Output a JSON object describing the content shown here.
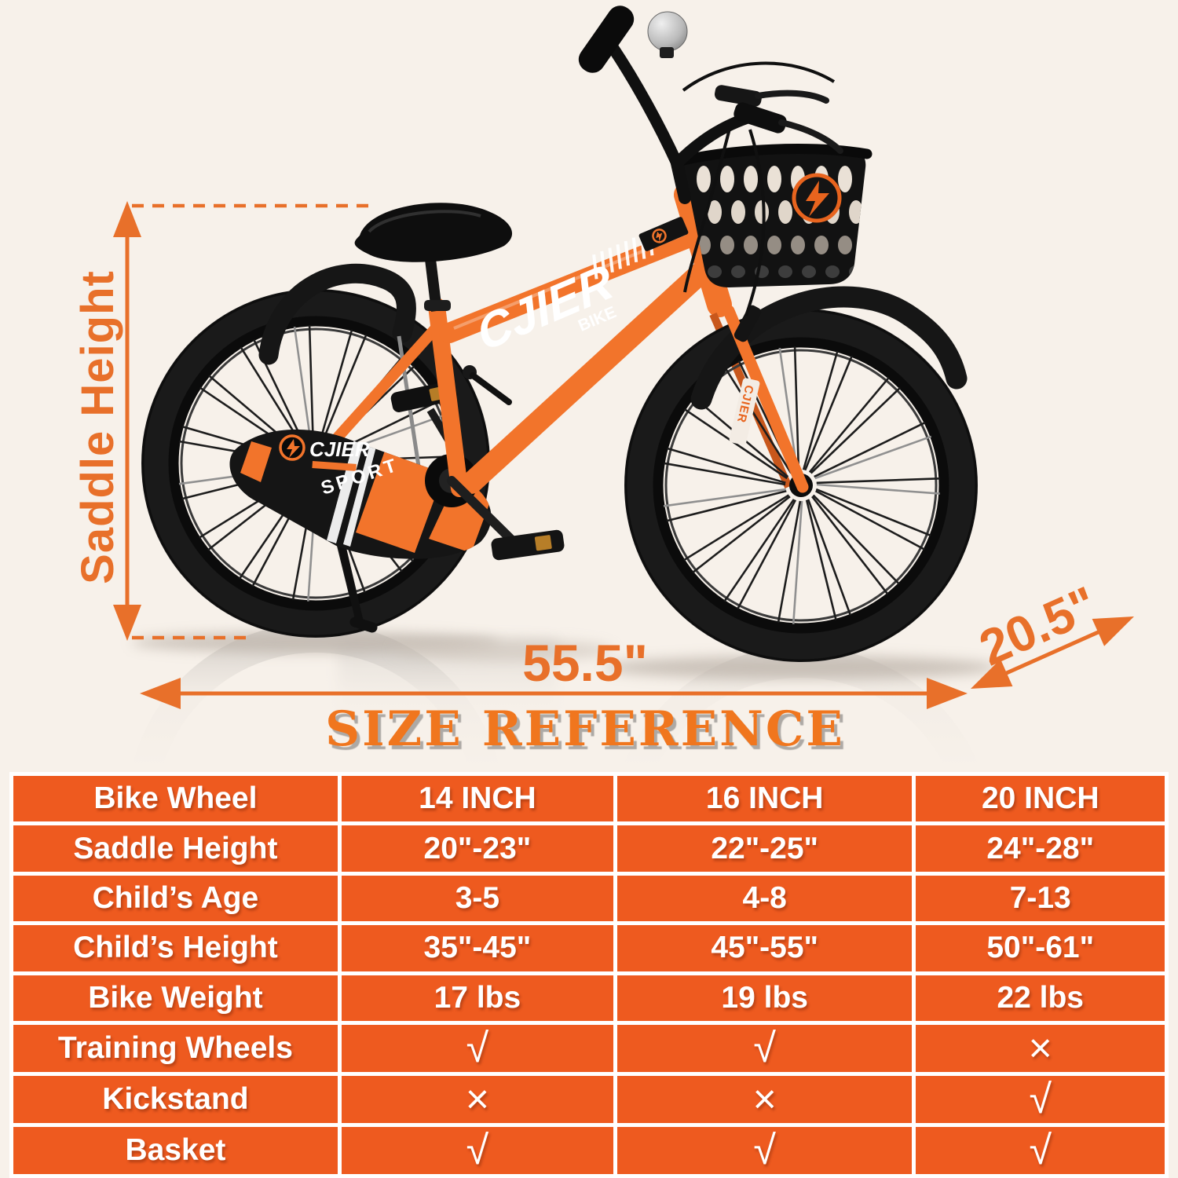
{
  "title": "SIZE REFERENCE",
  "annotations": {
    "saddle_height": "Saddle Height",
    "overall_length": "55.5\"",
    "wheel_size": "20.5\""
  },
  "bike": {
    "frame_logo": "CJIER",
    "frame_logo_sub": "BIKE",
    "chainguard_brand": "CJIER",
    "chainguard_model": "SPORT",
    "fork_label": "CJIER"
  },
  "table": {
    "rows": [
      {
        "label": "Bike Wheel",
        "values": [
          "14 INCH",
          "16 INCH",
          "20 INCH"
        ]
      },
      {
        "label": "Saddle Height",
        "values": [
          "20\"-23\"",
          "22\"-25\"",
          "24\"-28\""
        ]
      },
      {
        "label": "Child’s Age",
        "values": [
          "3-5",
          "4-8",
          "7-13"
        ]
      },
      {
        "label": "Child’s Height",
        "values": [
          "35\"-45\"",
          "45\"-55\"",
          "50\"-61\""
        ]
      },
      {
        "label": "Bike Weight",
        "values": [
          "17 lbs",
          "19 lbs",
          "22 lbs"
        ]
      },
      {
        "label": "Training Wheels",
        "values": [
          "√",
          "√",
          "×"
        ]
      },
      {
        "label": "Kickstand",
        "values": [
          "×",
          "×",
          "√"
        ]
      },
      {
        "label": "Basket",
        "values": [
          "√",
          "√",
          "√"
        ]
      }
    ]
  },
  "colors": {
    "background": "#F7F1EA",
    "table_orange": "#EE5A1F",
    "accent_orange": "#E8702A",
    "title_orange": "#F0761E",
    "bike_orange": "#F2742B",
    "text_white": "#FFFFFF"
  }
}
